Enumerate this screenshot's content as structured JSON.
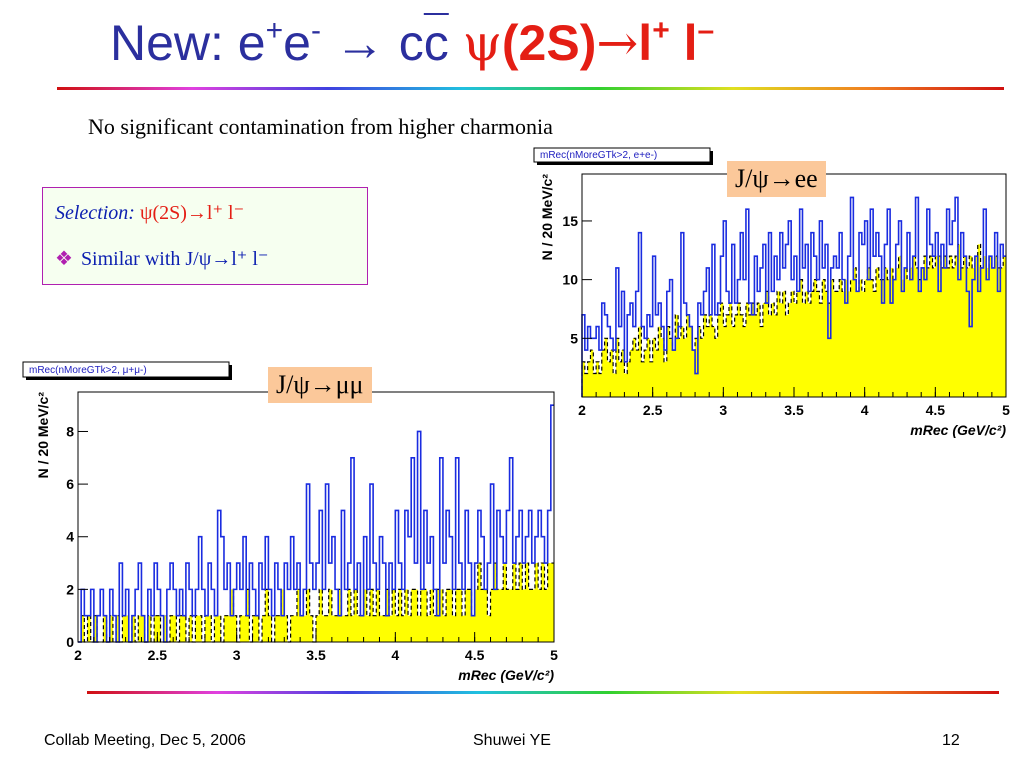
{
  "slide": {
    "title": {
      "prefix": "New: e",
      "sup1": "+",
      "mid": "e",
      "sup2": "-",
      "arrow": "→",
      "cc_c": "c",
      "cc_cbar": "c",
      "psi": "ψ",
      "state": "(2S)",
      "arrow2": "→",
      "l1": "l",
      "sup3": "+",
      "l2": "l",
      "sup4": "–"
    },
    "subtitle": "No significant contamination from higher charmonia",
    "selection": {
      "label": "Selection:",
      "value": "ψ(2S)→l⁺ l⁻",
      "bullet": "❖",
      "item": "Similar with J/ψ→l⁺ l⁻"
    },
    "footer": {
      "left": "Collab Meeting,  Dec 5, 2006",
      "center": "Shuwei YE",
      "right": "12"
    },
    "colors": {
      "title": "#2b2f9e",
      "title_psi": "#e41e14",
      "hist_line": "#1a2ce0",
      "hist_fill": "#ffff00",
      "label_bg": "#fbc89a"
    }
  },
  "chart_data": [
    {
      "type": "histogram",
      "stat_title": "mRec(nMoreGTk>2, e+e-)",
      "overlay_label": "J/ψ→ee",
      "xlabel": "mRec (GeV/c²)",
      "ylabel": "N / 20 MeV/c²",
      "xlim": [
        2,
        5
      ],
      "ylim": [
        0,
        19
      ],
      "xticks": [
        "2",
        "2.5",
        "3",
        "3.5",
        "4",
        "4.5",
        "5"
      ],
      "yticks": [
        "5",
        "10",
        "15"
      ],
      "bin_width": 0.02,
      "series": [
        {
          "style": "blue solid outline",
          "values": [
            7,
            4,
            6,
            5,
            5,
            6,
            4,
            8,
            7,
            6,
            5,
            4,
            11,
            6,
            9,
            3,
            7,
            8,
            6,
            9,
            14,
            6,
            5,
            7,
            6,
            12,
            7,
            8,
            6,
            4,
            9,
            10,
            4,
            5,
            6,
            14,
            8,
            7,
            6,
            4,
            2,
            8,
            7,
            9,
            11,
            7,
            13,
            7,
            8,
            12,
            15,
            9,
            8,
            13,
            8,
            10,
            14,
            10,
            16,
            8,
            7,
            12,
            9,
            11,
            13,
            8,
            14,
            9,
            12,
            10,
            14,
            11,
            13,
            15,
            10,
            12,
            9,
            16,
            11,
            13,
            9,
            14,
            12,
            10,
            15,
            11,
            13,
            5,
            11,
            12,
            11,
            14,
            10,
            8,
            12,
            17,
            10,
            9,
            14,
            13,
            15,
            10,
            16,
            12,
            14,
            12,
            8,
            13,
            16,
            8,
            10,
            13,
            15,
            9,
            11,
            14,
            10,
            12,
            17,
            9,
            11,
            10,
            16,
            13,
            12,
            14,
            9,
            13,
            11,
            16,
            13,
            15,
            17,
            10,
            14,
            12,
            9,
            6,
            10,
            12,
            9,
            11,
            16,
            10,
            12,
            11,
            14,
            9,
            13,
            12
          ]
        },
        {
          "style": "yellow filled, black dashed outline",
          "values": [
            3,
            2,
            3,
            4,
            2,
            3,
            2,
            4,
            5,
            3,
            4,
            2,
            5,
            3,
            4,
            2,
            3,
            4,
            5,
            4,
            6,
            3,
            4,
            5,
            3,
            5,
            4,
            6,
            5,
            3,
            6,
            5,
            4,
            7,
            5,
            6,
            5,
            7,
            6,
            4,
            5,
            6,
            5,
            7,
            6,
            7,
            6,
            5,
            7,
            8,
            6,
            7,
            8,
            6,
            7,
            8,
            7,
            6,
            8,
            7,
            8,
            7,
            8,
            6,
            8,
            9,
            7,
            8,
            7,
            9,
            8,
            9,
            7,
            8,
            9,
            8,
            9,
            10,
            8,
            9,
            8,
            9,
            10,
            9,
            8,
            10,
            9,
            8,
            10,
            9,
            9,
            10,
            9,
            10,
            9,
            10,
            11,
            9,
            10,
            9,
            10,
            11,
            10,
            9,
            11,
            10,
            10,
            11,
            10,
            11,
            10,
            11,
            12,
            10,
            11,
            10,
            11,
            12,
            11,
            10,
            11,
            12,
            11,
            12,
            11,
            12,
            12,
            11,
            12,
            11,
            12,
            11,
            12,
            13,
            11,
            12,
            11,
            12,
            11,
            12,
            13,
            11,
            12,
            11,
            12,
            11,
            12,
            11,
            11,
            12
          ]
        }
      ]
    },
    {
      "type": "histogram",
      "stat_title": "mRec(nMoreGTk>2, μ+μ-)",
      "overlay_label": "J/ψ→μμ",
      "xlabel": "mRec (GeV/c²)",
      "ylabel": "N / 20 MeV/c²",
      "xlim": [
        2,
        5
      ],
      "ylim": [
        0,
        9.5
      ],
      "xticks": [
        "2",
        "2.5",
        "3",
        "3.5",
        "4",
        "4.5",
        "5"
      ],
      "yticks": [
        "0",
        "2",
        "4",
        "6",
        "8"
      ],
      "bin_width": 0.02,
      "series": [
        {
          "style": "blue solid outline",
          "values": [
            0,
            2,
            1,
            1,
            2,
            0,
            1,
            2,
            1,
            0,
            2,
            1,
            0,
            3,
            1,
            2,
            0,
            1,
            2,
            3,
            1,
            0,
            2,
            1,
            3,
            2,
            1,
            0,
            2,
            3,
            2,
            1,
            2,
            1,
            3,
            2,
            1,
            2,
            4,
            2,
            1,
            3,
            2,
            1,
            5,
            4,
            2,
            3,
            1,
            2,
            3,
            2,
            4,
            1,
            3,
            2,
            1,
            3,
            2,
            4,
            2,
            1,
            3,
            2,
            1,
            3,
            2,
            4,
            2,
            3,
            1,
            2,
            6,
            3,
            2,
            3,
            5,
            2,
            6,
            3,
            4,
            2,
            1,
            5,
            2,
            3,
            7,
            2,
            3,
            1,
            4,
            2,
            6,
            3,
            2,
            4,
            3,
            1,
            3,
            2,
            5,
            3,
            2,
            5,
            4,
            7,
            3,
            8,
            2,
            5,
            3,
            4,
            2,
            1,
            7,
            3,
            5,
            4,
            2,
            7,
            3,
            2,
            5,
            3,
            1,
            3,
            5,
            4,
            2,
            3,
            6,
            2,
            5,
            4,
            3,
            5,
            7,
            3,
            4,
            5,
            3,
            4,
            5,
            3,
            4,
            5,
            4,
            3,
            5,
            9
          ]
        },
        {
          "style": "yellow filled, black dashed outline",
          "values": [
            0,
            1,
            0,
            1,
            0,
            1,
            0,
            0,
            1,
            0,
            1,
            0,
            1,
            0,
            1,
            1,
            0,
            1,
            0,
            1,
            1,
            0,
            1,
            0,
            1,
            1,
            0,
            1,
            0,
            1,
            1,
            0,
            1,
            1,
            0,
            1,
            0,
            1,
            1,
            0,
            1,
            1,
            0,
            1,
            1,
            0,
            1,
            1,
            2,
            1,
            0,
            1,
            1,
            2,
            0,
            1,
            1,
            0,
            1,
            2,
            1,
            0,
            1,
            1,
            2,
            1,
            0,
            1,
            1,
            2,
            1,
            1,
            2,
            1,
            0,
            1,
            2,
            1,
            1,
            2,
            1,
            1,
            2,
            1,
            1,
            2,
            1,
            2,
            1,
            1,
            2,
            1,
            2,
            1,
            2,
            1,
            1,
            2,
            1,
            2,
            1,
            2,
            1,
            2,
            1,
            2,
            2,
            1,
            2,
            2,
            1,
            2,
            1,
            2,
            2,
            1,
            2,
            2,
            1,
            2,
            2,
            1,
            2,
            2,
            1,
            2,
            3,
            2,
            2,
            1,
            2,
            3,
            2,
            2,
            3,
            2,
            2,
            3,
            2,
            3,
            2,
            3,
            2,
            2,
            3,
            2,
            3,
            2,
            3,
            3
          ]
        }
      ]
    }
  ]
}
